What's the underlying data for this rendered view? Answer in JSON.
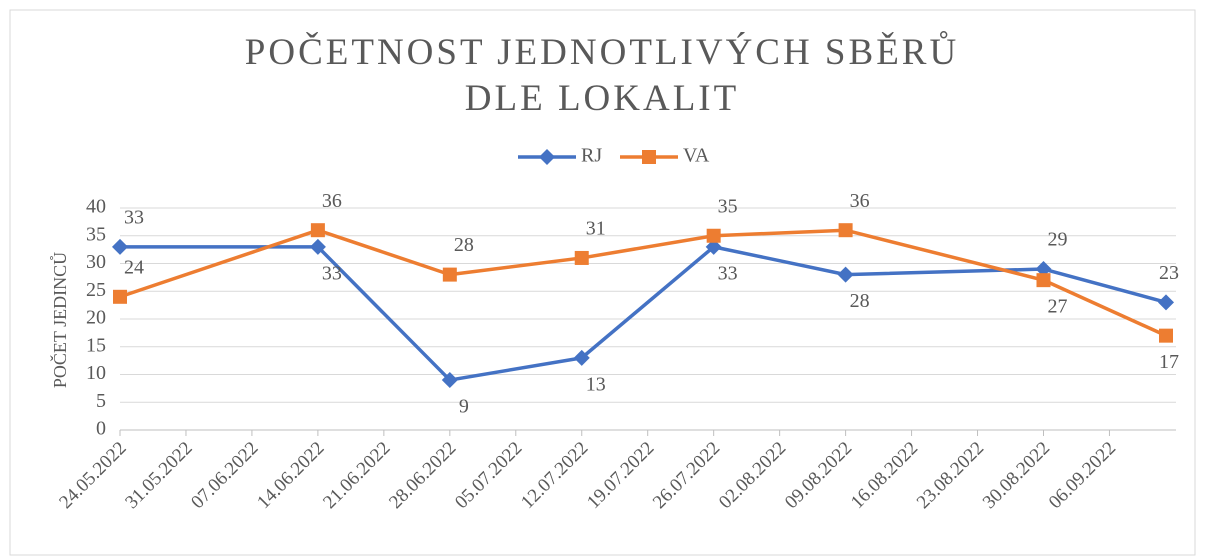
{
  "chart_data": {
    "type": "line",
    "title": "POČETNOST JEDNOTLIVÝCH SBĚRŮ DLE LOKALIT",
    "y_label": "POČET JEDINCŮ",
    "x": [
      "24.05.2022",
      "14.06.2022",
      "28.06.2022",
      "12.07.2022",
      "26.07.2022",
      "09.08.2022",
      "30.08.2022",
      "12.09.2022"
    ],
    "series": [
      {
        "name": "RJ",
        "color": "#4472c4",
        "marker": "diamond",
        "values": [
          33,
          33,
          9,
          13,
          33,
          28,
          29,
          23
        ]
      },
      {
        "name": "VA",
        "color": "#ed7d31",
        "marker": "square",
        "values": [
          24,
          36,
          28,
          31,
          35,
          36,
          27,
          17
        ]
      }
    ],
    "xlim": [
      "24.05.2022",
      "12.09.2022"
    ],
    "xticks": [
      "24.05.2022",
      "31.05.2022",
      "07.06.2022",
      "14.06.2022",
      "21.06.2022",
      "28.06.2022",
      "05.07.2022",
      "12.07.2022",
      "19.07.2022",
      "26.07.2022",
      "02.08.2022",
      "09.08.2022",
      "16.08.2022",
      "23.08.2022",
      "30.08.2022",
      "06.09.2022"
    ],
    "ylim": [
      0,
      40
    ],
    "yticks": [
      0,
      5,
      10,
      15,
      20,
      25,
      30,
      35,
      40
    ],
    "grid": true,
    "legend": "top"
  }
}
